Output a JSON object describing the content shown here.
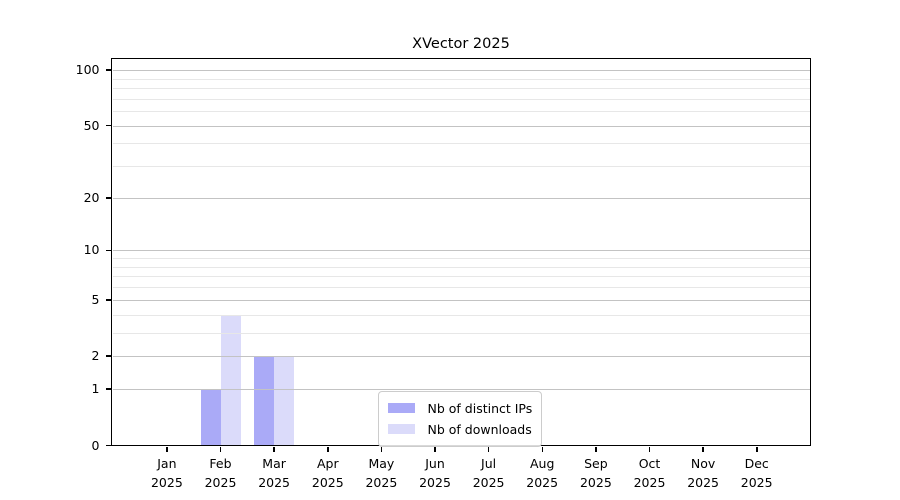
{
  "chart_data": {
    "type": "bar",
    "title": "XVector 2025",
    "x_labels": [
      "Jan 2025",
      "Feb 2025",
      "Mar 2025",
      "Apr 2025",
      "May 2025",
      "Jun 2025",
      "Jul 2025",
      "Aug 2025",
      "Sep 2025",
      "Oct 2025",
      "Nov 2025",
      "Dec 2025"
    ],
    "series": [
      {
        "name": "Nb of distinct IPs",
        "color": "#aaaaf7",
        "values": [
          0,
          1,
          2,
          0,
          0,
          0,
          0,
          0,
          0,
          0,
          0,
          0
        ]
      },
      {
        "name": "Nb of downloads",
        "color": "#dbdbfa",
        "values": [
          0,
          4,
          2,
          0,
          0,
          0,
          0,
          0,
          0,
          0,
          0,
          0
        ]
      }
    ],
    "y_axis": {
      "scale": "log1p",
      "ticks": [
        0,
        1,
        2,
        5,
        10,
        20,
        50,
        100
      ],
      "minor_ticks": [
        3,
        4,
        6,
        7,
        8,
        9,
        30,
        40,
        60,
        70,
        80,
        90
      ],
      "range": [
        0,
        114
      ]
    },
    "grid": "horizontal",
    "legend_position": "inside-bottom-center",
    "colors": {
      "bar_distinct_ips": "#aaaaf7",
      "bar_downloads": "#dbdbfa",
      "grid_major": "#c3c3c3",
      "grid_minor": "#e7e7e7",
      "axis": "#000000",
      "legend_border": "#cccccc",
      "background": "#ffffff"
    }
  }
}
